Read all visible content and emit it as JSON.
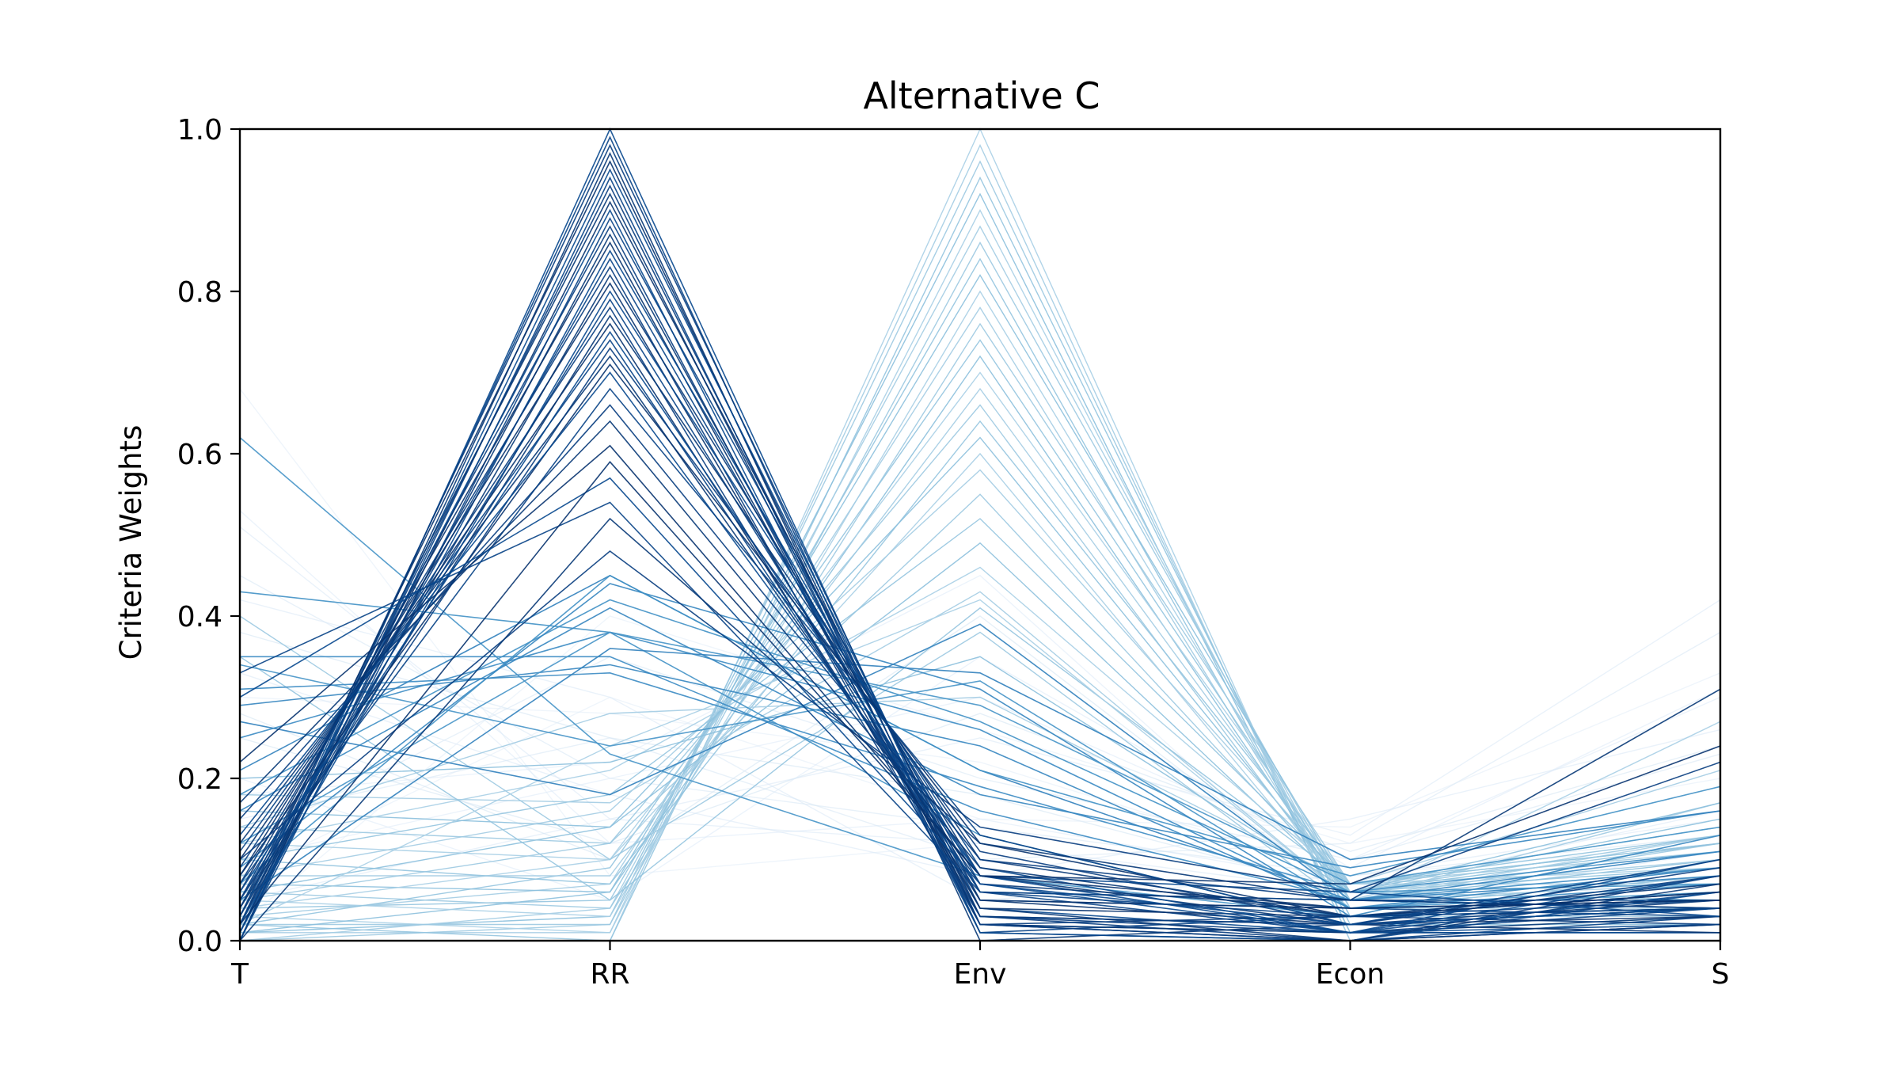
{
  "chart_data": {
    "type": "line",
    "subtype": "parallel-coordinates",
    "title": "Alternative C",
    "ylabel": "Criteria Weights",
    "xlabel": "",
    "categories": [
      "T",
      "RR",
      "Env",
      "Econ",
      "S"
    ],
    "ylim": [
      0.0,
      1.0
    ],
    "yticks": [
      "0.0",
      "0.2",
      "0.4",
      "0.6",
      "0.8",
      "1.0"
    ],
    "grid": false,
    "legend": "none",
    "colormap": "Blues",
    "colors": {
      "dark": "#08306b",
      "mid": "#4a8cc4",
      "light": "#9ecae1",
      "faint": "#deebf7"
    },
    "groups": [
      {
        "name": "",
        "color_level": 0.95,
        "series": [
          {
            "values": [
              0.0,
              1.0,
              0.02,
              0.01,
              0.02
            ]
          },
          {
            "values": [
              0.01,
              0.99,
              0.01,
              0.0,
              0.03
            ]
          },
          {
            "values": [
              0.02,
              0.98,
              0.03,
              0.01,
              0.01
            ]
          },
          {
            "values": [
              0.0,
              0.97,
              0.0,
              0.02,
              0.04
            ]
          },
          {
            "values": [
              0.03,
              0.96,
              0.02,
              0.0,
              0.02
            ]
          },
          {
            "values": [
              0.01,
              0.95,
              0.04,
              0.01,
              0.01
            ]
          },
          {
            "values": [
              0.0,
              0.94,
              0.01,
              0.03,
              0.05
            ]
          },
          {
            "values": [
              0.02,
              0.93,
              0.03,
              0.0,
              0.02
            ]
          },
          {
            "values": [
              0.04,
              0.92,
              0.02,
              0.01,
              0.03
            ]
          },
          {
            "values": [
              0.01,
              0.91,
              0.05,
              0.02,
              0.01
            ]
          },
          {
            "values": [
              0.03,
              0.9,
              0.01,
              0.0,
              0.06
            ]
          },
          {
            "values": [
              0.0,
              0.89,
              0.06,
              0.01,
              0.04
            ]
          },
          {
            "values": [
              0.05,
              0.88,
              0.02,
              0.03,
              0.02
            ]
          },
          {
            "values": [
              0.02,
              0.87,
              0.04,
              0.0,
              0.07
            ]
          },
          {
            "values": [
              0.06,
              0.86,
              0.03,
              0.02,
              0.03
            ]
          },
          {
            "values": [
              0.01,
              0.85,
              0.07,
              0.01,
              0.06
            ]
          },
          {
            "values": [
              0.04,
              0.84,
              0.05,
              0.04,
              0.03
            ]
          },
          {
            "values": [
              0.07,
              0.83,
              0.02,
              0.0,
              0.08
            ]
          },
          {
            "values": [
              0.03,
              0.82,
              0.08,
              0.02,
              0.05
            ]
          },
          {
            "values": [
              0.08,
              0.81,
              0.04,
              0.03,
              0.04
            ]
          },
          {
            "values": [
              0.02,
              0.8,
              0.09,
              0.01,
              0.08
            ]
          },
          {
            "values": [
              0.05,
              0.79,
              0.06,
              0.05,
              0.05
            ]
          },
          {
            "values": [
              0.09,
              0.78,
              0.03,
              0.02,
              0.08
            ]
          },
          {
            "values": [
              0.04,
              0.77,
              0.1,
              0.03,
              0.06
            ]
          },
          {
            "values": [
              0.1,
              0.76,
              0.05,
              0.04,
              0.05
            ]
          },
          {
            "values": [
              0.06,
              0.75,
              0.08,
              0.01,
              0.1
            ]
          },
          {
            "values": [
              0.11,
              0.74,
              0.06,
              0.05,
              0.04
            ]
          },
          {
            "values": [
              0.05,
              0.73,
              0.11,
              0.02,
              0.09
            ]
          },
          {
            "values": [
              0.12,
              0.72,
              0.07,
              0.04,
              0.05
            ]
          },
          {
            "values": [
              0.08,
              0.71,
              0.12,
              0.03,
              0.06
            ]
          },
          {
            "values": [
              0.13,
              0.7,
              0.08,
              0.06,
              0.03
            ]
          },
          {
            "values": [
              0.07,
              0.68,
              0.13,
              0.02,
              0.1
            ]
          },
          {
            "values": [
              0.15,
              0.66,
              0.1,
              0.05,
              0.04
            ]
          },
          {
            "values": [
              0.17,
              0.64,
              0.09,
              0.03,
              0.07
            ]
          },
          {
            "values": [
              0.22,
              0.61,
              0.08,
              0.04,
              0.05
            ]
          },
          {
            "values": [
              0.3,
              0.57,
              0.07,
              0.02,
              0.04
            ]
          },
          {
            "values": [
              0.33,
              0.54,
              0.06,
              0.03,
              0.04
            ]
          },
          {
            "values": [
              0.1,
              0.48,
              0.14,
              0.06,
              0.22
            ]
          },
          {
            "values": [
              0.0,
              0.52,
              0.12,
              0.05,
              0.31
            ]
          },
          {
            "values": [
              0.02,
              0.59,
              0.08,
              0.07,
              0.24
            ]
          }
        ]
      },
      {
        "name": "",
        "color_level": 0.65,
        "series": [
          {
            "values": [
              0.62,
              0.23,
              0.08,
              0.03,
              0.04
            ]
          },
          {
            "values": [
              0.43,
              0.38,
              0.13,
              0.02,
              0.04
            ]
          },
          {
            "values": [
              0.35,
              0.35,
              0.16,
              0.05,
              0.09
            ]
          },
          {
            "values": [
              0.29,
              0.34,
              0.24,
              0.04,
              0.09
            ]
          },
          {
            "values": [
              0.21,
              0.45,
              0.21,
              0.05,
              0.08
            ]
          },
          {
            "values": [
              0.34,
              0.24,
              0.32,
              0.04,
              0.06
            ]
          },
          {
            "values": [
              0.18,
              0.42,
              0.27,
              0.06,
              0.07
            ]
          },
          {
            "values": [
              0.25,
              0.38,
              0.26,
              0.04,
              0.07
            ]
          },
          {
            "values": [
              0.09,
              0.44,
              0.31,
              0.03,
              0.13
            ]
          },
          {
            "values": [
              0.27,
              0.18,
              0.39,
              0.05,
              0.11
            ]
          },
          {
            "values": [
              0.12,
              0.38,
              0.29,
              0.07,
              0.14
            ]
          },
          {
            "values": [
              0.07,
              0.45,
              0.21,
              0.08,
              0.19
            ]
          },
          {
            "values": [
              0.31,
              0.33,
              0.19,
              0.06,
              0.11
            ]
          },
          {
            "values": [
              0.16,
              0.41,
              0.18,
              0.09,
              0.16
            ]
          },
          {
            "values": [
              0.05,
              0.36,
              0.33,
              0.1,
              0.16
            ]
          }
        ]
      },
      {
        "name": "",
        "color_level": 0.38,
        "series": [
          {
            "values": [
              0.0,
              0.0,
              1.0,
              0.0,
              0.0
            ]
          },
          {
            "values": [
              0.01,
              0.01,
              0.98,
              0.0,
              0.0
            ]
          },
          {
            "values": [
              0.0,
              0.02,
              0.96,
              0.01,
              0.01
            ]
          },
          {
            "values": [
              0.02,
              0.0,
              0.94,
              0.02,
              0.02
            ]
          },
          {
            "values": [
              0.01,
              0.03,
              0.92,
              0.01,
              0.03
            ]
          },
          {
            "values": [
              0.03,
              0.01,
              0.9,
              0.03,
              0.03
            ]
          },
          {
            "values": [
              0.0,
              0.04,
              0.88,
              0.04,
              0.04
            ]
          },
          {
            "values": [
              0.02,
              0.02,
              0.86,
              0.05,
              0.05
            ]
          },
          {
            "values": [
              0.04,
              0.05,
              0.84,
              0.03,
              0.04
            ]
          },
          {
            "values": [
              0.01,
              0.06,
              0.82,
              0.06,
              0.05
            ]
          },
          {
            "values": [
              0.05,
              0.03,
              0.8,
              0.05,
              0.07
            ]
          },
          {
            "values": [
              0.03,
              0.07,
              0.78,
              0.04,
              0.08
            ]
          },
          {
            "values": [
              0.06,
              0.04,
              0.76,
              0.07,
              0.07
            ]
          },
          {
            "values": [
              0.02,
              0.09,
              0.74,
              0.06,
              0.09
            ]
          },
          {
            "values": [
              0.07,
              0.06,
              0.72,
              0.05,
              0.1
            ]
          },
          {
            "values": [
              0.04,
              0.1,
              0.7,
              0.07,
              0.09
            ]
          },
          {
            "values": [
              0.08,
              0.08,
              0.68,
              0.06,
              0.1
            ]
          },
          {
            "values": [
              0.05,
              0.12,
              0.66,
              0.05,
              0.12
            ]
          },
          {
            "values": [
              0.1,
              0.07,
              0.64,
              0.07,
              0.12
            ]
          },
          {
            "values": [
              0.06,
              0.14,
              0.62,
              0.06,
              0.12
            ]
          },
          {
            "values": [
              0.12,
              0.1,
              0.6,
              0.05,
              0.13
            ]
          },
          {
            "values": [
              0.08,
              0.16,
              0.58,
              0.07,
              0.11
            ]
          },
          {
            "values": [
              0.14,
              0.12,
              0.55,
              0.06,
              0.13
            ]
          },
          {
            "values": [
              0.1,
              0.18,
              0.52,
              0.07,
              0.13
            ]
          },
          {
            "values": [
              0.16,
              0.14,
              0.49,
              0.06,
              0.15
            ]
          },
          {
            "values": [
              0.12,
              0.21,
              0.46,
              0.07,
              0.14
            ]
          },
          {
            "values": [
              0.18,
              0.17,
              0.43,
              0.05,
              0.17
            ]
          },
          {
            "values": [
              0.4,
              0.1,
              0.38,
              0.04,
              0.08
            ]
          },
          {
            "values": [
              0.35,
              0.05,
              0.41,
              0.07,
              0.12
            ]
          },
          {
            "values": [
              0.2,
              0.22,
              0.35,
              0.06,
              0.17
            ]
          },
          {
            "values": [
              0.02,
              0.24,
              0.42,
              0.05,
              0.27
            ]
          },
          {
            "values": [
              0.14,
              0.28,
              0.3,
              0.07,
              0.21
            ]
          }
        ]
      },
      {
        "name": "",
        "color_level": 0.15,
        "series": [
          {
            "values": [
              0.68,
              0.08,
              0.12,
              0.05,
              0.07
            ]
          },
          {
            "values": [
              0.53,
              0.12,
              0.15,
              0.07,
              0.13
            ]
          },
          {
            "values": [
              0.51,
              0.15,
              0.12,
              0.06,
              0.16
            ]
          },
          {
            "values": [
              0.45,
              0.2,
              0.14,
              0.08,
              0.13
            ]
          },
          {
            "values": [
              0.38,
              0.25,
              0.18,
              0.06,
              0.13
            ]
          },
          {
            "values": [
              0.3,
              0.28,
              0.22,
              0.08,
              0.12
            ]
          },
          {
            "values": [
              0.1,
              0.2,
              0.3,
              0.1,
              0.3
            ]
          },
          {
            "values": [
              0.05,
              0.15,
              0.25,
              0.13,
              0.42
            ]
          },
          {
            "values": [
              0.15,
              0.25,
              0.1,
              0.12,
              0.38
            ]
          },
          {
            "values": [
              0.25,
              0.12,
              0.28,
              0.11,
              0.24
            ]
          },
          {
            "values": [
              0.08,
              0.3,
              0.15,
              0.14,
              0.33
            ]
          },
          {
            "values": [
              0.2,
              0.05,
              0.35,
              0.09,
              0.31
            ]
          },
          {
            "values": [
              0.33,
              0.18,
              0.08,
              0.15,
              0.26
            ]
          },
          {
            "values": [
              0.12,
              0.35,
              0.2,
              0.1,
              0.23
            ]
          },
          {
            "values": [
              0.28,
              0.1,
              0.4,
              0.05,
              0.17
            ]
          },
          {
            "values": [
              0.02,
              0.4,
              0.26,
              0.12,
              0.2
            ]
          },
          {
            "values": [
              0.18,
              0.22,
              0.45,
              0.04,
              0.11
            ]
          },
          {
            "values": [
              0.42,
              0.3,
              0.05,
              0.08,
              0.15
            ]
          }
        ]
      }
    ]
  }
}
